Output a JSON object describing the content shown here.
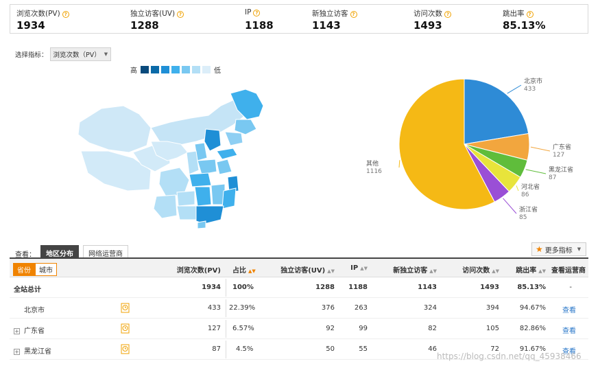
{
  "summary": [
    {
      "label": "浏览次数(PV)",
      "value": "1934"
    },
    {
      "label": "独立访客(UV)",
      "value": "1288"
    },
    {
      "label": "IP",
      "value": "1188"
    },
    {
      "label": "新独立访客",
      "value": "1143"
    },
    {
      "label": "访问次数",
      "value": "1493"
    },
    {
      "label": "跳出率",
      "value": "85.13%"
    }
  ],
  "metric_selector": {
    "label": "选择指标：",
    "value": "浏览次数（PV）"
  },
  "map_legend": {
    "high": "高",
    "low": "低",
    "colors": [
      "#0a4a7c",
      "#0b6aa8",
      "#1f8fd6",
      "#3fb0ec",
      "#79c8f1",
      "#b3dff6",
      "#dceef9"
    ]
  },
  "pie_chart": {
    "chart_data": {
      "type": "pie",
      "slices": [
        {
          "name": "北京市",
          "value": 433,
          "color": "#2e8bd6"
        },
        {
          "name": "广东省",
          "value": 127,
          "color": "#f2a63e"
        },
        {
          "name": "黑龙江省",
          "value": 87,
          "color": "#5fbd3b"
        },
        {
          "name": "河北省",
          "value": 86,
          "color": "#e8e43b"
        },
        {
          "name": "浙江省",
          "value": 85,
          "color": "#9a4fd6"
        },
        {
          "name": "其他",
          "value": 1116,
          "color": "#f5b915"
        }
      ]
    }
  },
  "view": {
    "label": "查看：",
    "tabs": [
      "地区分布",
      "网络运营商"
    ],
    "more_label": "更多指标"
  },
  "table": {
    "segment": [
      "省份",
      "城市"
    ],
    "columns": [
      "浏览次数(PV)",
      "占比",
      "独立访客(UV)",
      "IP",
      "新独立访客",
      "访问次数",
      "跳出率",
      "查看运营商"
    ],
    "rows": [
      {
        "name": "全站总计",
        "pv": "1934",
        "ratio": "100%",
        "uv": "1288",
        "ip": "1188",
        "new_uv": "1143",
        "visits": "1493",
        "bounce": "85.13%",
        "op": "-"
      },
      {
        "name": "北京市",
        "pv": "433",
        "ratio": "22.39%",
        "uv": "376",
        "ip": "263",
        "new_uv": "324",
        "visits": "394",
        "bounce": "94.67%",
        "op": "查看"
      },
      {
        "name": "广东省",
        "pv": "127",
        "ratio": "6.57%",
        "uv": "92",
        "ip": "99",
        "new_uv": "82",
        "visits": "105",
        "bounce": "82.86%",
        "op": "查看"
      },
      {
        "name": "黑龙江省",
        "pv": "87",
        "ratio": "4.5%",
        "uv": "50",
        "ip": "55",
        "new_uv": "46",
        "visits": "72",
        "bounce": "91.67%",
        "op": "查看"
      }
    ]
  },
  "watermark": "https://blog.csdn.net/qq_45938466"
}
